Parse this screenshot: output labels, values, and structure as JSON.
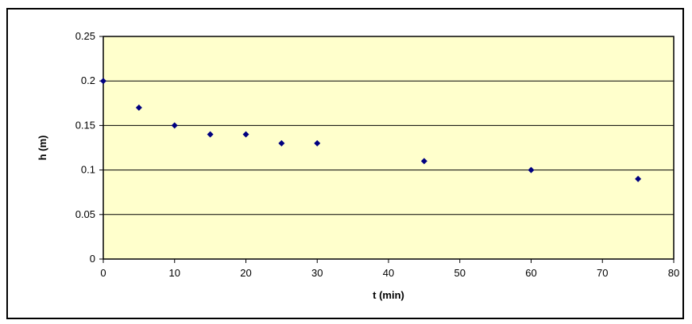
{
  "chart_data": {
    "type": "scatter",
    "title": "",
    "xlabel": "t (min)",
    "ylabel": "h (m)",
    "xlim": [
      0,
      80
    ],
    "ylim": [
      0,
      0.25
    ],
    "x_ticks": [
      0,
      10,
      20,
      30,
      40,
      50,
      60,
      70,
      80
    ],
    "y_ticks": [
      0,
      0.05,
      0.1,
      0.15,
      0.2,
      0.25
    ],
    "x_tick_labels": [
      "0",
      "10",
      "20",
      "30",
      "40",
      "50",
      "60",
      "70",
      "80"
    ],
    "y_tick_labels": [
      "0",
      "0.05",
      "0.1",
      "0.15",
      "0.2",
      "0.25"
    ],
    "grid": "horizontal",
    "legend": "none",
    "series": [
      {
        "x": [
          0,
          5,
          10,
          15,
          20,
          25,
          30,
          45,
          60,
          75
        ],
        "y": [
          0.2,
          0.17,
          0.15,
          0.14,
          0.14,
          0.13,
          0.13,
          0.11,
          0.1,
          0.09
        ],
        "marker": "diamond",
        "color": "#000080"
      }
    ],
    "colors": {
      "plot_background": "#FFFFCC",
      "gridline": "#000000"
    }
  }
}
